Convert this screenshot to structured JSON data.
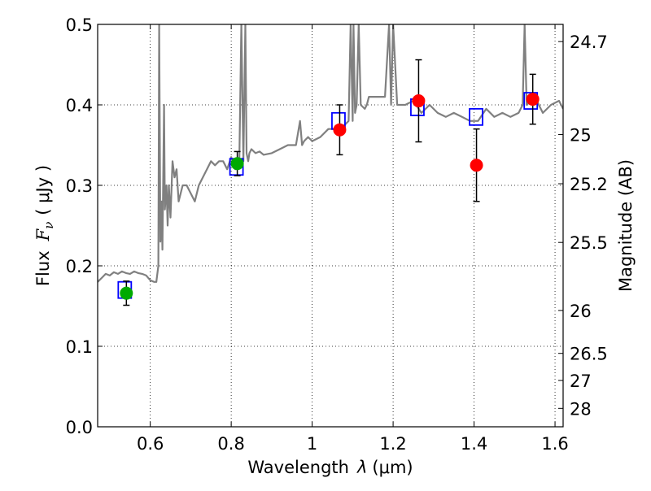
{
  "chart_data": {
    "type": "scatter",
    "title": "",
    "xlabel": "Wavelength",
    "xlabel_symbol": "λ",
    "xlabel_unit": "(μm)",
    "ylabel": "Flux",
    "ylabel_symbol": "F",
    "ylabel_subscript": "ν",
    "ylabel_unit": "( μJy )",
    "ylabel_right": "Magnitude (AB)",
    "xlim": [
      0.47,
      1.62
    ],
    "ylim": [
      0.0,
      0.5
    ],
    "grid": true,
    "x_ticks": [
      0.6,
      0.8,
      1.0,
      1.2,
      1.4,
      1.6
    ],
    "x_tick_labels": [
      "0.6",
      "0.8",
      "1",
      "1.2",
      "1.4",
      "1.6"
    ],
    "y_ticks": [
      0.0,
      0.1,
      0.2,
      0.3,
      0.4,
      0.5
    ],
    "y_tick_labels": [
      "0.0",
      "0.1",
      "0.2",
      "0.3",
      "0.4",
      "0.5"
    ],
    "right_ticks": [
      {
        "label": "24.7",
        "mag": 24.7
      },
      {
        "label": "25",
        "mag": 25.0
      },
      {
        "label": "25.2",
        "mag": 25.2
      },
      {
        "label": "25.5",
        "mag": 25.5
      },
      {
        "label": "26",
        "mag": 26.0
      },
      {
        "label": "26.5",
        "mag": 26.5
      },
      {
        "label": "27",
        "mag": 27.0
      },
      {
        "label": "28",
        "mag": 28.0
      }
    ],
    "series": [
      {
        "name": "template spectrum",
        "kind": "line",
        "color": "#808080",
        "x": [
          0.47,
          0.48,
          0.49,
          0.5,
          0.51,
          0.52,
          0.53,
          0.54,
          0.55,
          0.56,
          0.57,
          0.58,
          0.59,
          0.6,
          0.61,
          0.615,
          0.62,
          0.622,
          0.625,
          0.628,
          0.63,
          0.634,
          0.636,
          0.64,
          0.643,
          0.646,
          0.65,
          0.655,
          0.66,
          0.665,
          0.67,
          0.68,
          0.69,
          0.7,
          0.71,
          0.72,
          0.73,
          0.74,
          0.75,
          0.76,
          0.77,
          0.78,
          0.79,
          0.8,
          0.81,
          0.82,
          0.825,
          0.83,
          0.835,
          0.838,
          0.842,
          0.845,
          0.85,
          0.86,
          0.87,
          0.88,
          0.9,
          0.92,
          0.94,
          0.96,
          0.97,
          0.975,
          0.98,
          0.99,
          1.0,
          1.02,
          1.04,
          1.06,
          1.08,
          1.09,
          1.095,
          1.1,
          1.102,
          1.106,
          1.11,
          1.115,
          1.12,
          1.13,
          1.135,
          1.14,
          1.16,
          1.18,
          1.19,
          1.195,
          1.2,
          1.21,
          1.23,
          1.25,
          1.27,
          1.29,
          1.31,
          1.33,
          1.35,
          1.37,
          1.39,
          1.41,
          1.43,
          1.45,
          1.47,
          1.49,
          1.51,
          1.52,
          1.525,
          1.53,
          1.55,
          1.57,
          1.59,
          1.61,
          1.62
        ],
        "y": [
          0.18,
          0.185,
          0.19,
          0.188,
          0.192,
          0.19,
          0.193,
          0.191,
          0.19,
          0.193,
          0.191,
          0.19,
          0.188,
          0.182,
          0.18,
          0.18,
          0.2,
          0.5,
          0.23,
          0.28,
          0.22,
          0.4,
          0.27,
          0.3,
          0.25,
          0.3,
          0.26,
          0.33,
          0.31,
          0.32,
          0.28,
          0.3,
          0.3,
          0.29,
          0.28,
          0.3,
          0.31,
          0.32,
          0.33,
          0.325,
          0.33,
          0.33,
          0.32,
          0.335,
          0.32,
          0.33,
          0.5,
          0.33,
          0.5,
          0.34,
          0.33,
          0.34,
          0.345,
          0.34,
          0.342,
          0.338,
          0.34,
          0.345,
          0.35,
          0.35,
          0.38,
          0.35,
          0.355,
          0.36,
          0.355,
          0.36,
          0.37,
          0.37,
          0.375,
          0.38,
          0.5,
          0.38,
          0.5,
          0.39,
          0.4,
          0.5,
          0.4,
          0.395,
          0.4,
          0.41,
          0.41,
          0.41,
          0.5,
          0.4,
          0.5,
          0.4,
          0.4,
          0.405,
          0.39,
          0.4,
          0.39,
          0.385,
          0.39,
          0.385,
          0.38,
          0.38,
          0.395,
          0.385,
          0.39,
          0.385,
          0.39,
          0.4,
          0.5,
          0.4,
          0.41,
          0.39,
          0.4,
          0.405,
          0.395
        ]
      },
      {
        "name": "model fluxes",
        "kind": "open-square",
        "color": "#0000ff",
        "x": [
          0.537,
          0.813,
          1.065,
          1.26,
          1.405,
          1.54
        ],
        "y": [
          0.17,
          0.323,
          0.38,
          0.397,
          0.385,
          0.405
        ]
      },
      {
        "name": "observed (green)",
        "kind": "filled-circle",
        "color": "#00aa00",
        "x": [
          0.541,
          0.815
        ],
        "y": [
          0.166,
          0.327
        ],
        "err": [
          0.015,
          0.015
        ]
      },
      {
        "name": "observed (red)",
        "kind": "filled-circle",
        "color": "#ff0000",
        "x": [
          1.068,
          1.263,
          1.406,
          1.545
        ],
        "y": [
          0.369,
          0.405,
          0.325,
          0.407
        ],
        "err": [
          0.031,
          0.051,
          0.045,
          0.031
        ]
      }
    ]
  }
}
